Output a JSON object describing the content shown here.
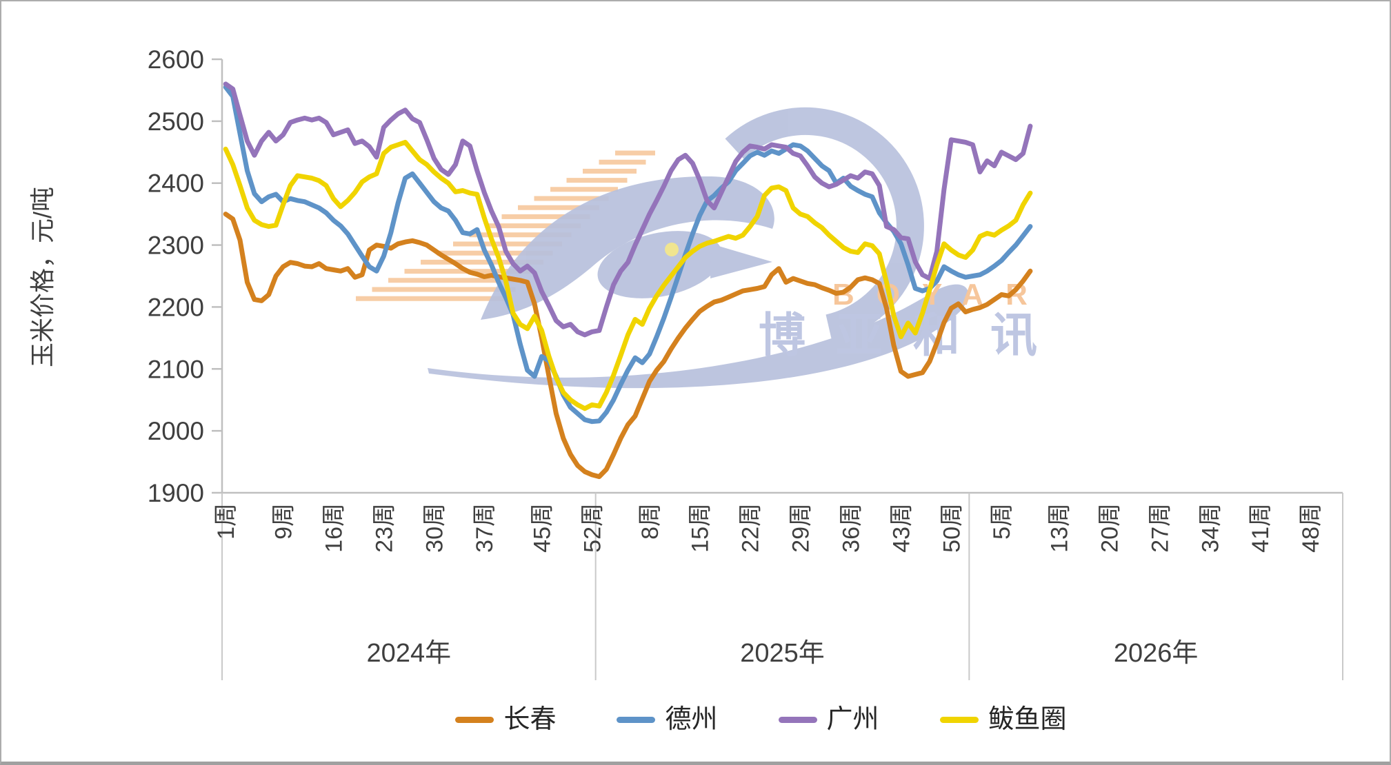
{
  "page": {
    "background": "#ffffff",
    "border_color": "#acacac"
  },
  "watermark": {
    "brand_latin": "BOYAR",
    "brand_cjk": "博亚和讯",
    "bird_color": "#b8c1dd",
    "stripe_color": "#f7cda6",
    "latin_color": "#f6c69b",
    "cjk_color": "#bec6e2",
    "eye_color": "#efe387"
  },
  "chart_data": {
    "type": "line",
    "title": "",
    "ylabel": "玉米价格，元/吨",
    "xlabel": "",
    "ylim": [
      1900,
      2600
    ],
    "yticks": [
      2600,
      2500,
      2400,
      2300,
      2200,
      2100,
      2000,
      1900
    ],
    "grid": false,
    "legend_position": "bottom",
    "week_suffix": "周",
    "weeks_per_year": 52,
    "axis_color": "#bfbfbf",
    "separator_color": "#c9c9c9",
    "year_groups": [
      {
        "year_label": "2024年",
        "tick_weeks": [
          1,
          9,
          16,
          23,
          30,
          37,
          45,
          52
        ]
      },
      {
        "year_label": "2025年",
        "tick_weeks": [
          8,
          15,
          22,
          29,
          36,
          43,
          50
        ]
      },
      {
        "year_label": "2026年",
        "tick_weeks": [
          5,
          13,
          20,
          27,
          34,
          41,
          48
        ]
      }
    ],
    "series": [
      {
        "name": "长春",
        "color": "#d4811e",
        "start": {
          "year": 2024,
          "week": 1
        },
        "values": [
          2350,
          2342,
          2308,
          2240,
          2212,
          2210,
          2220,
          2250,
          2265,
          2272,
          2270,
          2266,
          2265,
          2270,
          2262,
          2260,
          2258,
          2262,
          2248,
          2252,
          2292,
          2300,
          2298,
          2295,
          2302,
          2305,
          2307,
          2304,
          2300,
          2292,
          2284,
          2277,
          2270,
          2262,
          2256,
          2253,
          2249,
          2251,
          2249,
          2247,
          2245,
          2243,
          2240,
          2205,
          2150,
          2088,
          2028,
          1988,
          1962,
          1944,
          1934,
          1929,
          1926,
          1938,
          1962,
          1988,
          2010,
          2024,
          2052,
          2080,
          2098,
          2112,
          2132,
          2150,
          2166,
          2180,
          2193,
          2201,
          2208,
          2211,
          2216,
          2221,
          2226,
          2228,
          2230,
          2233,
          2252,
          2262,
          2240,
          2246,
          2242,
          2238,
          2236,
          2231,
          2227,
          2222,
          2224,
          2232,
          2244,
          2247,
          2244,
          2238,
          2198,
          2138,
          2096,
          2088,
          2091,
          2094,
          2112,
          2142,
          2175,
          2198,
          2205,
          2192,
          2196,
          2199,
          2204,
          2212,
          2220,
          2218,
          2228,
          2242,
          2258
        ]
      },
      {
        "name": "德州",
        "color": "#5e93c8",
        "start": {
          "year": 2024,
          "week": 1
        },
        "values": [
          2555,
          2540,
          2480,
          2420,
          2383,
          2370,
          2378,
          2382,
          2370,
          2375,
          2372,
          2370,
          2365,
          2360,
          2352,
          2340,
          2331,
          2318,
          2300,
          2282,
          2265,
          2258,
          2282,
          2320,
          2368,
          2408,
          2415,
          2400,
          2385,
          2370,
          2360,
          2355,
          2340,
          2320,
          2318,
          2325,
          2292,
          2268,
          2240,
          2215,
          2188,
          2140,
          2098,
          2088,
          2120,
          2113,
          2088,
          2058,
          2038,
          2028,
          2018,
          2015,
          2016,
          2030,
          2050,
          2075,
          2098,
          2118,
          2110,
          2124,
          2152,
          2182,
          2215,
          2250,
          2285,
          2318,
          2348,
          2371,
          2380,
          2392,
          2402,
          2420,
          2432,
          2444,
          2450,
          2445,
          2452,
          2448,
          2455,
          2462,
          2460,
          2452,
          2440,
          2428,
          2420,
          2400,
          2408,
          2395,
          2388,
          2382,
          2378,
          2352,
          2336,
          2322,
          2302,
          2268,
          2230,
          2226,
          2230,
          2242,
          2265,
          2258,
          2252,
          2248,
          2250,
          2252,
          2258,
          2266,
          2275,
          2288,
          2300,
          2315,
          2330
        ]
      },
      {
        "name": "广州",
        "color": "#9474ba",
        "start": {
          "year": 2024,
          "week": 1
        },
        "values": [
          2560,
          2552,
          2510,
          2468,
          2445,
          2468,
          2482,
          2468,
          2478,
          2498,
          2502,
          2505,
          2502,
          2505,
          2498,
          2478,
          2482,
          2486,
          2464,
          2468,
          2459,
          2442,
          2490,
          2502,
          2512,
          2518,
          2504,
          2498,
          2470,
          2440,
          2422,
          2414,
          2430,
          2468,
          2460,
          2420,
          2385,
          2355,
          2330,
          2290,
          2270,
          2258,
          2266,
          2255,
          2225,
          2202,
          2178,
          2168,
          2172,
          2160,
          2155,
          2160,
          2162,
          2200,
          2236,
          2258,
          2272,
          2300,
          2325,
          2350,
          2372,
          2395,
          2420,
          2438,
          2445,
          2432,
          2405,
          2372,
          2360,
          2385,
          2410,
          2435,
          2450,
          2460,
          2458,
          2455,
          2462,
          2460,
          2458,
          2448,
          2444,
          2428,
          2410,
          2400,
          2394,
          2398,
          2405,
          2412,
          2408,
          2418,
          2415,
          2396,
          2330,
          2325,
          2312,
          2310,
          2273,
          2252,
          2246,
          2290,
          2390,
          2470,
          2468,
          2466,
          2462,
          2418,
          2436,
          2428,
          2450,
          2444,
          2438,
          2448,
          2492
        ]
      },
      {
        "name": "鲅鱼圈",
        "color": "#f0d400",
        "start": {
          "year": 2024,
          "week": 1
        },
        "values": [
          2455,
          2430,
          2396,
          2360,
          2340,
          2333,
          2330,
          2332,
          2365,
          2396,
          2412,
          2410,
          2408,
          2404,
          2396,
          2375,
          2362,
          2372,
          2385,
          2402,
          2410,
          2415,
          2448,
          2458,
          2462,
          2466,
          2452,
          2438,
          2430,
          2418,
          2408,
          2400,
          2386,
          2388,
          2384,
          2382,
          2344,
          2310,
          2280,
          2242,
          2190,
          2172,
          2165,
          2185,
          2162,
          2120,
          2086,
          2062,
          2050,
          2042,
          2036,
          2042,
          2040,
          2062,
          2090,
          2122,
          2155,
          2180,
          2172,
          2198,
          2218,
          2235,
          2250,
          2265,
          2280,
          2290,
          2298,
          2303,
          2306,
          2310,
          2314,
          2311,
          2316,
          2330,
          2346,
          2380,
          2392,
          2394,
          2388,
          2360,
          2350,
          2346,
          2336,
          2328,
          2316,
          2306,
          2296,
          2290,
          2288,
          2302,
          2299,
          2286,
          2240,
          2186,
          2152,
          2174,
          2158,
          2190,
          2228,
          2268,
          2302,
          2292,
          2284,
          2280,
          2292,
          2314,
          2319,
          2316,
          2324,
          2331,
          2340,
          2365,
          2384
        ]
      }
    ]
  }
}
